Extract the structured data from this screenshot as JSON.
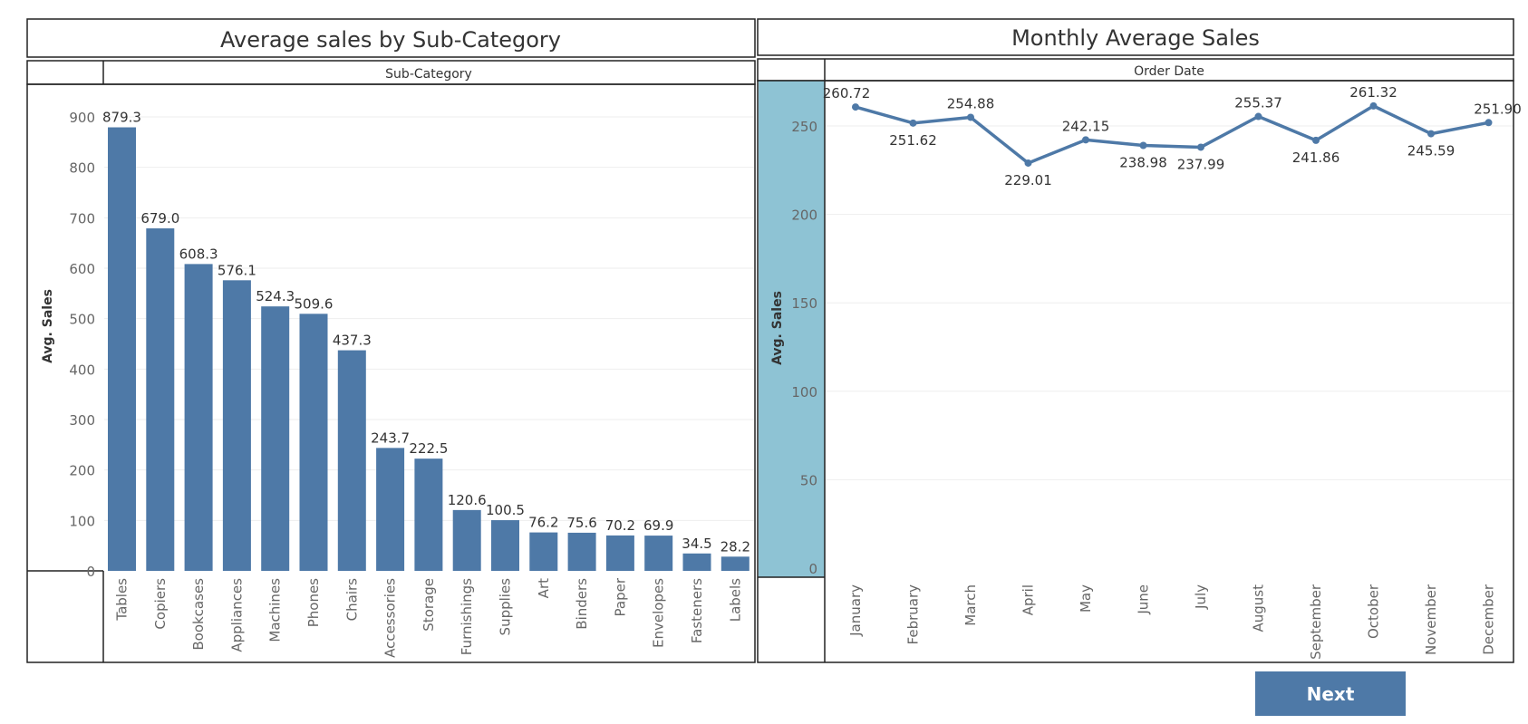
{
  "colors": {
    "bar": "#4e79a7",
    "line": "#4e79a7",
    "axis_band": "#8ec3d4"
  },
  "next_button": {
    "label": "Next"
  },
  "chart_data": [
    {
      "type": "bar",
      "title": "Average sales by Sub-Category",
      "header": "Sub-Category",
      "ylabel": "Avg. Sales",
      "ylim": [
        0,
        900
      ],
      "yticks": [
        0,
        100,
        200,
        300,
        400,
        500,
        600,
        700,
        800,
        900
      ],
      "grid": true,
      "categories": [
        "Tables",
        "Copiers",
        "Bookcases",
        "Appliances",
        "Machines",
        "Phones",
        "Chairs",
        "Accessories",
        "Storage",
        "Furnishings",
        "Supplies",
        "Art",
        "Binders",
        "Paper",
        "Envelopes",
        "Fasteners",
        "Labels"
      ],
      "values": [
        879.3,
        679.0,
        608.3,
        576.1,
        524.3,
        509.6,
        437.3,
        243.7,
        222.5,
        120.6,
        100.5,
        76.2,
        75.6,
        70.2,
        69.9,
        34.5,
        28.2
      ],
      "labels": [
        "879.3",
        "679.0",
        "608.3",
        "576.1",
        "524.3",
        "509.6",
        "437.3",
        "243.7",
        "222.5",
        "120.6",
        "100.5",
        "76.2",
        "75.6",
        "70.2",
        "69.9",
        "34.5",
        "28.2"
      ]
    },
    {
      "type": "line",
      "title": "Monthly Average Sales",
      "header": "Order Date",
      "ylabel": "Avg. Sales",
      "ylim": [
        0,
        250
      ],
      "yticks": [
        0,
        50,
        100,
        150,
        200,
        250
      ],
      "grid": true,
      "categories": [
        "January",
        "February",
        "March",
        "April",
        "May",
        "June",
        "July",
        "August",
        "September",
        "October",
        "November",
        "December"
      ],
      "values": [
        260.72,
        251.62,
        254.88,
        229.01,
        242.15,
        238.98,
        237.99,
        255.37,
        241.86,
        261.32,
        245.59,
        251.9
      ],
      "labels": [
        "260.72",
        "251.62",
        "254.88",
        "229.01",
        "242.15",
        "238.98",
        "237.99",
        "255.37",
        "241.86",
        "261.32",
        "245.59",
        "251.90"
      ]
    }
  ]
}
